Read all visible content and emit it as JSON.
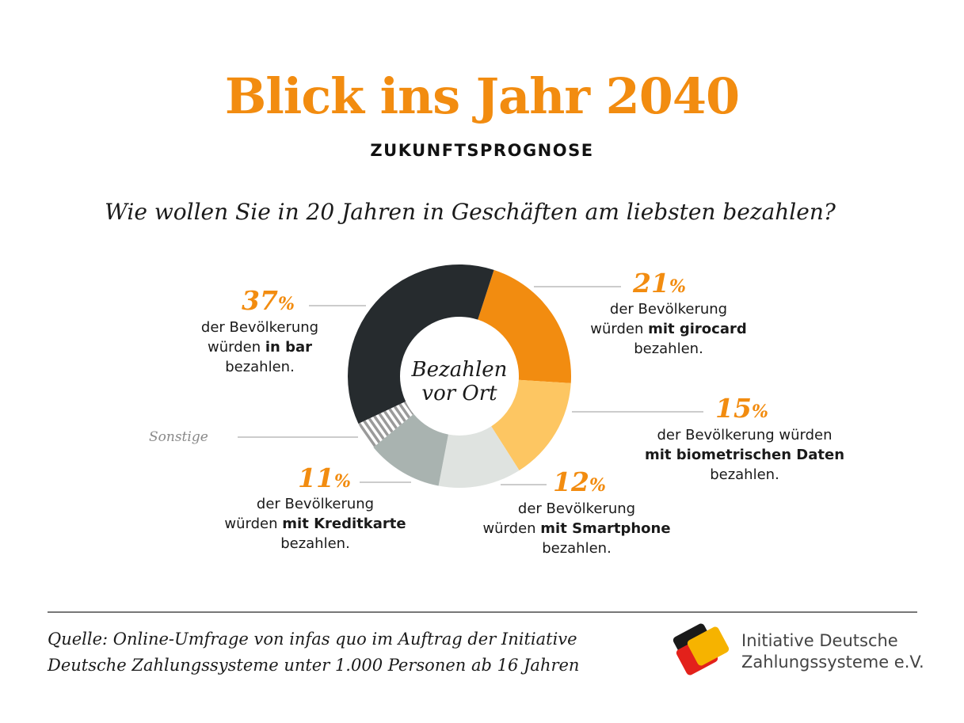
{
  "title": "Blick ins Jahr 2040",
  "subtitle": "ZUKUNFTSPROGNOSE",
  "question": "Wie wollen Sie in 20 Jahren in Geschäften am liebsten bezahlen?",
  "chart_data": {
    "type": "pie",
    "variant": "donut",
    "center_label_line1": "Bezahlen",
    "center_label_line2": "vor Ort",
    "percent_symbol": "%",
    "slices": [
      {
        "key": "girocard",
        "value": 21,
        "color": "#f28c10",
        "pattern": "solid",
        "pct_text": "21",
        "line1": "der Bevölkerung",
        "line2_prefix": "würden ",
        "line2_bold": "mit girocard",
        "line3": "bezahlen."
      },
      {
        "key": "biometrisch",
        "value": 15,
        "color": "#fdc662",
        "pattern": "solid",
        "pct_text": "15",
        "line1": "der Bevölkerung würden",
        "line2_prefix": "",
        "line2_bold": "mit biometrischen Daten",
        "line3": "bezahlen."
      },
      {
        "key": "smartphone",
        "value": 12,
        "color": "#dfe3e0",
        "pattern": "solid",
        "pct_text": "12",
        "line1": "der Bevölkerung",
        "line2_prefix": "würden ",
        "line2_bold": "mit Smartphone",
        "line3": "bezahlen."
      },
      {
        "key": "kreditkarte",
        "value": 11,
        "color": "#a9b3b0",
        "pattern": "solid",
        "pct_text": "11",
        "line1": "der Bevölkerung",
        "line2_prefix": "würden ",
        "line2_bold": "mit Kreditkarte",
        "line3": "bezahlen."
      },
      {
        "key": "sonstige",
        "value": 4,
        "color": "#9a9a9a",
        "pattern": "hatched",
        "label": "Sonstige"
      },
      {
        "key": "bar",
        "value": 37,
        "color": "#262b2e",
        "pattern": "solid",
        "pct_text": "37",
        "line1": "der Bevölkerung",
        "line2_prefix": "würden ",
        "line2_bold": "in bar",
        "line3": "bezahlen."
      }
    ]
  },
  "source": {
    "line1": "Quelle: Online-Umfrage von infas quo im Auftrag der Initiative",
    "line2": "Deutsche Zahlungssysteme unter 1.000 Personen ab 16 Jahren"
  },
  "logo": {
    "line1": "Initiative Deutsche",
    "line2": "Zahlungssysteme e.V.",
    "colors": [
      "#1a1a1a",
      "#e3211b",
      "#f6b300"
    ]
  }
}
